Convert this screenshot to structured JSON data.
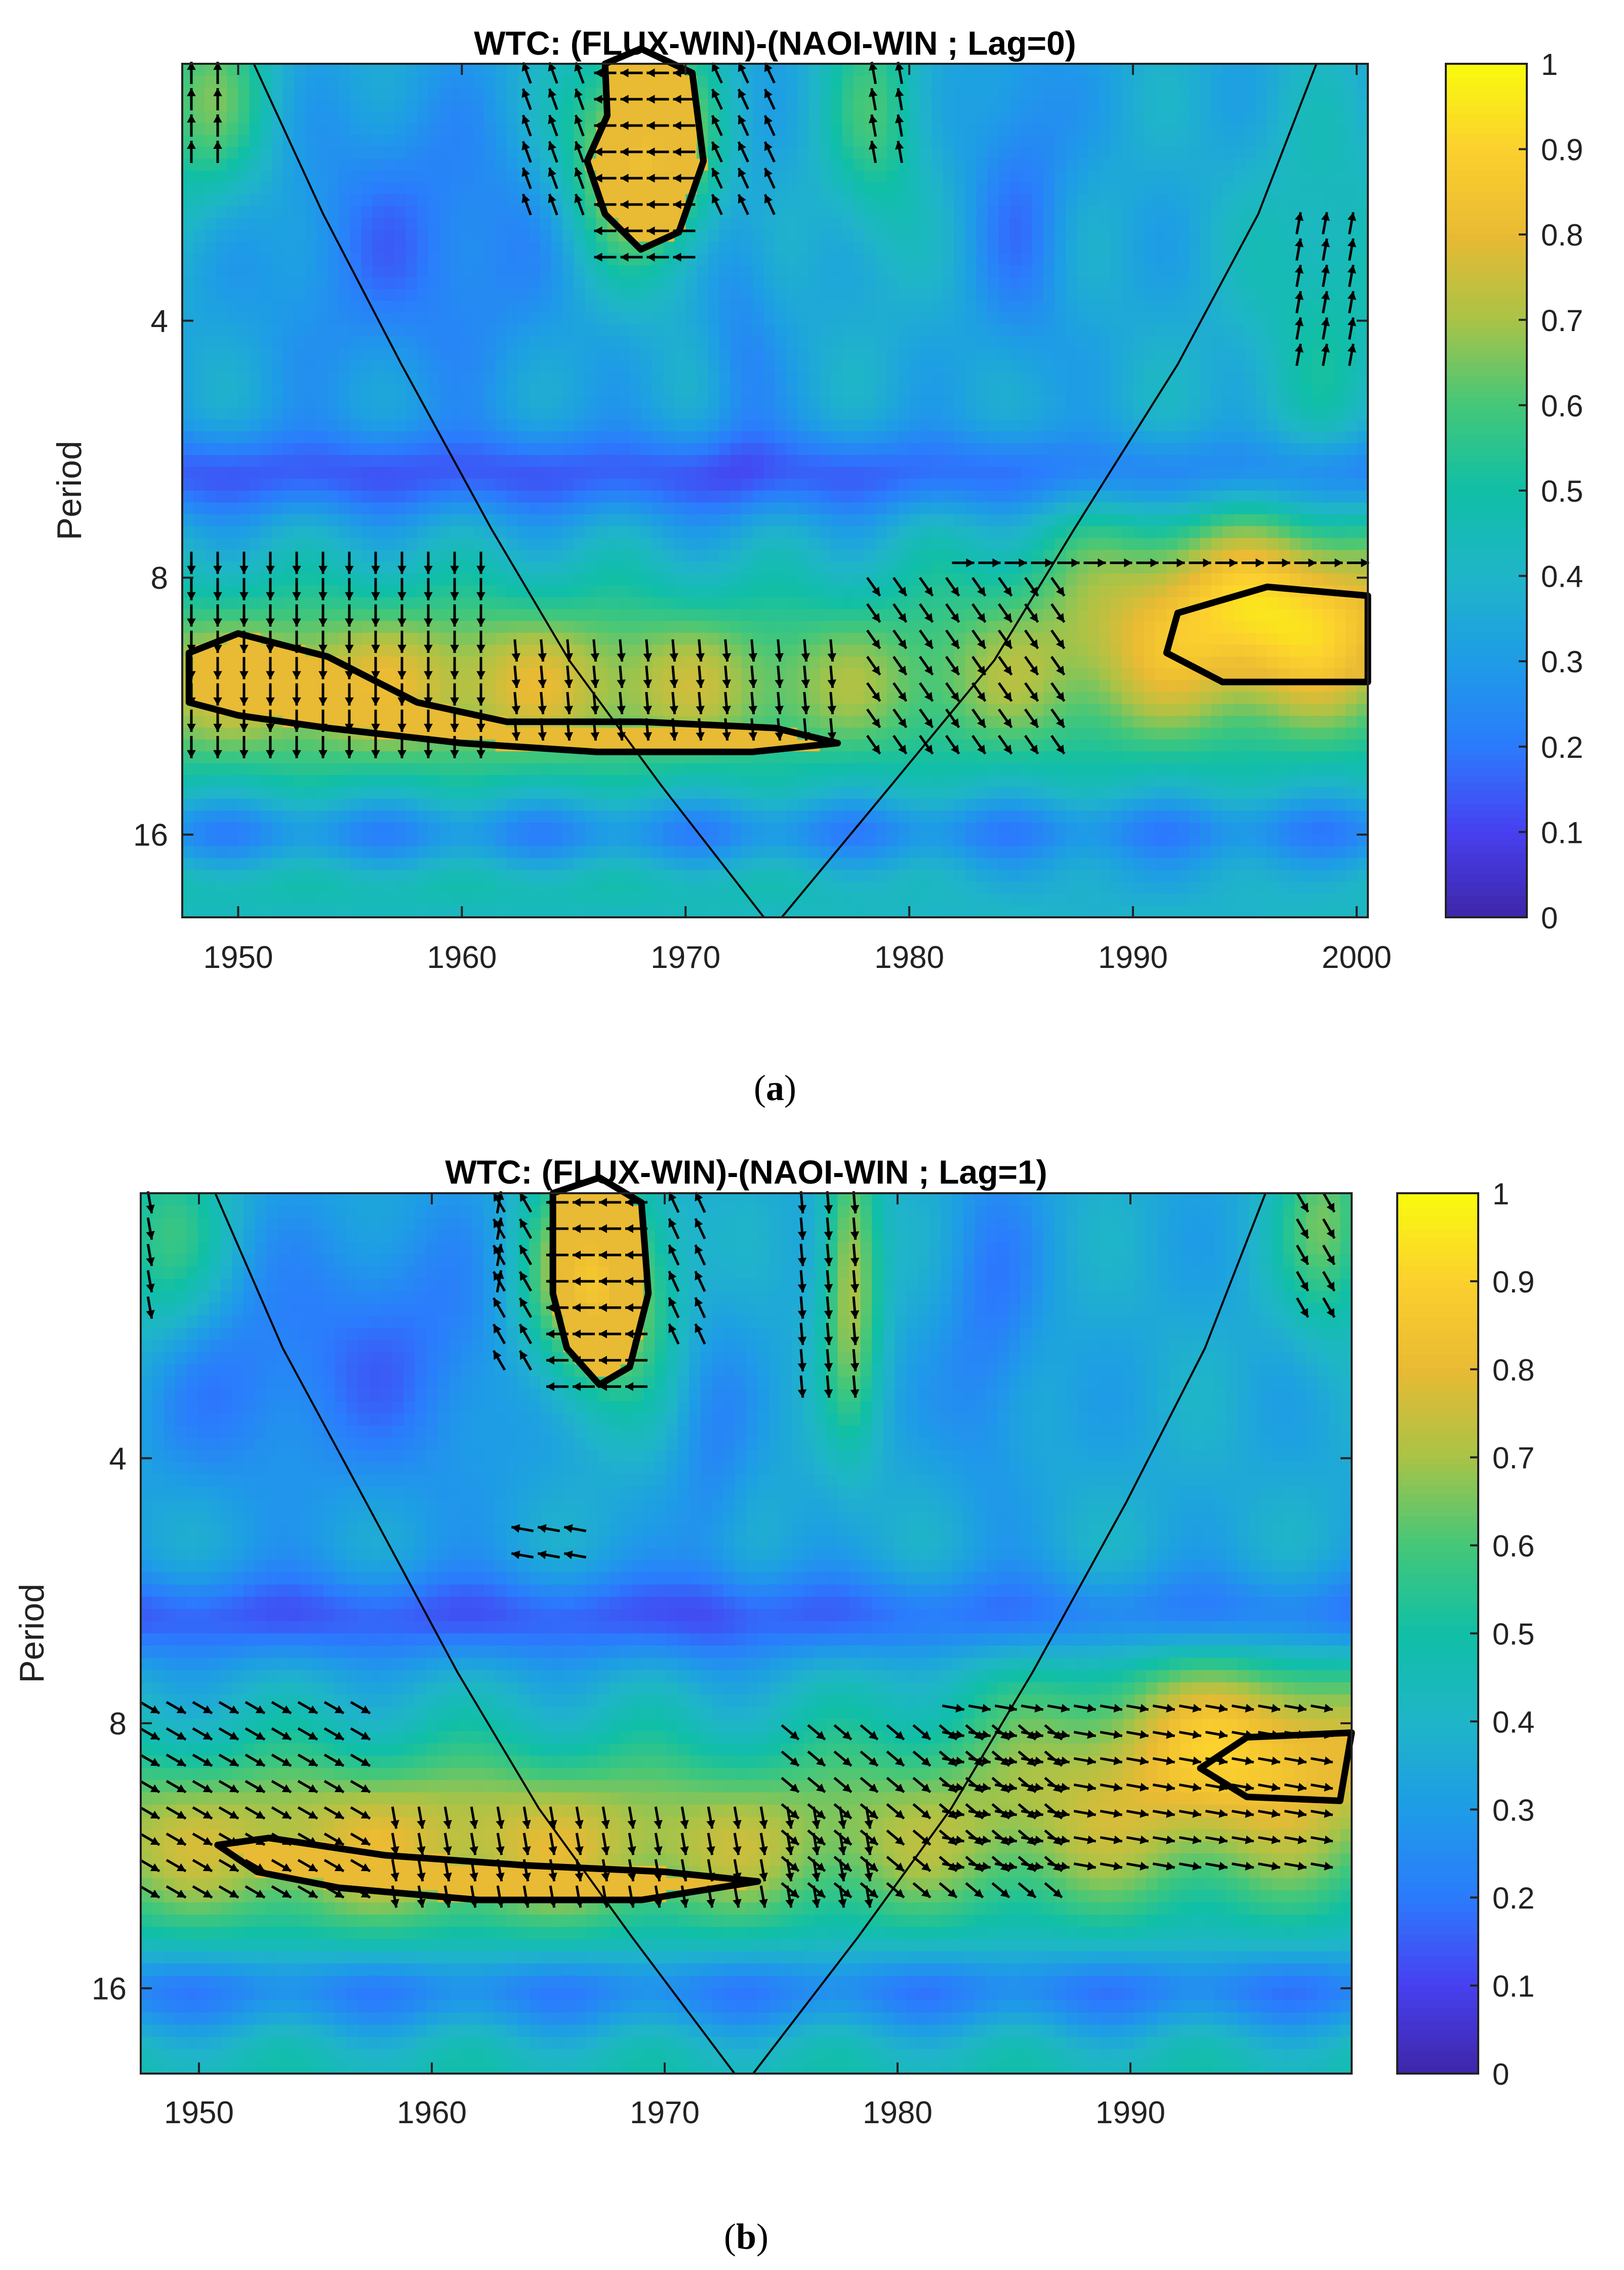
{
  "chart_data": [
    {
      "type": "heatmap",
      "title": "WTC: (FLUX-WIN)-(NAOI-WIN ; Lag=0)",
      "caption_letter": "a",
      "caption_open": "(",
      "caption_close": ")",
      "ylabel": "Period",
      "xlim": [
        1947.5,
        2000.5
      ],
      "ylim": [
        2,
        20
      ],
      "y_scale": "log2",
      "y_inverted": true,
      "x_ticks": [
        1950,
        1960,
        1970,
        1980,
        1990,
        2000
      ],
      "y_ticks": [
        4,
        8,
        16
      ],
      "colorbar": {
        "min": 0,
        "max": 1,
        "ticks": [
          0,
          0.1,
          0.2,
          0.3,
          0.4,
          0.5,
          0.6,
          0.7,
          0.8,
          0.9,
          1
        ],
        "stops": [
          "#3e26a8",
          "#4740f0",
          "#2b7bfd",
          "#1e9ce6",
          "#1fb5c8",
          "#10bfa6",
          "#44c779",
          "#a9c347",
          "#e9ba33",
          "#fcd02e",
          "#f9fb0e"
        ]
      },
      "cone_of_influence": {
        "left": [
          [
            1950.7,
            2
          ],
          [
            1953.8,
            3
          ],
          [
            1957.3,
            4.5
          ],
          [
            1961.3,
            7
          ],
          [
            1964.8,
            10
          ],
          [
            1968.9,
            14
          ],
          [
            1973.5,
            20
          ]
        ],
        "right": [
          [
            1974.3,
            20
          ],
          [
            1979.2,
            14
          ],
          [
            1983.8,
            10
          ],
          [
            1987.4,
            7
          ],
          [
            1992.0,
            4.5
          ],
          [
            1995.6,
            3
          ],
          [
            1998.2,
            2
          ]
        ]
      },
      "significance_contours": [
        [
          [
            1966.5,
            2.3
          ],
          [
            1966.4,
            2.0
          ],
          [
            1968.0,
            1.92
          ],
          [
            1970.3,
            2.05
          ],
          [
            1970.8,
            2.6
          ],
          [
            1969.7,
            3.15
          ],
          [
            1968.0,
            3.3
          ],
          [
            1966.4,
            3.0
          ],
          [
            1965.6,
            2.6
          ]
        ],
        [
          [
            1947.8,
            9.8
          ],
          [
            1950.0,
            9.3
          ],
          [
            1954.0,
            9.9
          ],
          [
            1958.0,
            11.2
          ],
          [
            1962.0,
            11.8
          ],
          [
            1968.0,
            11.8
          ],
          [
            1974.0,
            12.0
          ],
          [
            1976.8,
            12.5
          ],
          [
            1973.0,
            12.8
          ],
          [
            1966.0,
            12.8
          ],
          [
            1960.0,
            12.5
          ],
          [
            1954.0,
            12.0
          ],
          [
            1950.0,
            11.6
          ],
          [
            1947.8,
            11.2
          ]
        ],
        [
          [
            2000.5,
            8.4
          ],
          [
            1996.0,
            8.2
          ],
          [
            1992.0,
            8.8
          ],
          [
            1991.5,
            9.8
          ],
          [
            1994.0,
            10.6
          ],
          [
            2000.5,
            10.6
          ]
        ]
      ],
      "phase_arrow_groups": [
        {
          "x": [
            1947.5,
            1950
          ],
          "y": [
            2.0,
            2.6
          ],
          "angle": 90
        },
        {
          "x": [
            1966,
            1971
          ],
          "y": [
            2.0,
            3.5
          ],
          "angle": 180
        },
        {
          "x": [
            1962.5,
            1966
          ],
          "y": [
            2.0,
            3.0
          ],
          "angle": 110
        },
        {
          "x": [
            1971,
            1975
          ],
          "y": [
            2.0,
            3.0
          ],
          "angle": 115
        },
        {
          "x": [
            1978,
            1980
          ],
          "y": [
            2.0,
            2.6
          ],
          "angle": 100
        },
        {
          "x": [
            1997,
            2000.5
          ],
          "y": [
            3.0,
            4.8
          ],
          "angle": 80
        },
        {
          "x": [
            1947.5,
            1962
          ],
          "y": [
            7.5,
            13.0
          ],
          "angle": -90
        },
        {
          "x": [
            1962,
            1978
          ],
          "y": [
            9.5,
            13.0
          ],
          "angle": -85
        },
        {
          "x": [
            1978,
            1988
          ],
          "y": [
            8.0,
            13.0
          ],
          "angle": -55
        },
        {
          "x": [
            1982,
            2000.5
          ],
          "y": [
            7.5,
            8.2
          ],
          "angle": 0
        }
      ]
    },
    {
      "type": "heatmap",
      "title": "WTC: (FLUX-WIN)-(NAOI-WIN ; Lag=1)",
      "caption_letter": "b",
      "caption_open": "(",
      "caption_close": ")",
      "ylabel": "Period",
      "xlim": [
        1947.5,
        1999.5
      ],
      "ylim": [
        2,
        20
      ],
      "y_scale": "log2",
      "y_inverted": true,
      "x_ticks": [
        1950,
        1960,
        1970,
        1980,
        1990
      ],
      "y_ticks": [
        4,
        8,
        16
      ],
      "colorbar": {
        "min": 0,
        "max": 1,
        "ticks": [
          0,
          0.1,
          0.2,
          0.3,
          0.4,
          0.5,
          0.6,
          0.7,
          0.8,
          0.9,
          1
        ],
        "stops": [
          "#3e26a8",
          "#4740f0",
          "#2b7bfd",
          "#1e9ce6",
          "#1fb5c8",
          "#10bfa6",
          "#44c779",
          "#a9c347",
          "#e9ba33",
          "#fcd02e",
          "#f9fb0e"
        ]
      },
      "cone_of_influence": {
        "left": [
          [
            1950.7,
            2
          ],
          [
            1953.6,
            3
          ],
          [
            1957.2,
            4.5
          ],
          [
            1961.1,
            7
          ],
          [
            1964.6,
            10
          ],
          [
            1968.6,
            14
          ],
          [
            1973.0,
            20
          ]
        ],
        "right": [
          [
            1973.8,
            20
          ],
          [
            1978.3,
            14
          ],
          [
            1982.3,
            10
          ],
          [
            1985.8,
            7
          ],
          [
            1989.8,
            4.5
          ],
          [
            1993.2,
            3
          ],
          [
            1995.8,
            2
          ]
        ]
      },
      "significance_contours": [
        [
          [
            1965.2,
            2.3
          ],
          [
            1965.2,
            2.0
          ],
          [
            1967.2,
            1.92
          ],
          [
            1969.0,
            2.05
          ],
          [
            1969.3,
            2.6
          ],
          [
            1968.5,
            3.15
          ],
          [
            1967.2,
            3.3
          ],
          [
            1965.8,
            3.0
          ],
          [
            1965.2,
            2.6
          ]
        ],
        [
          [
            1950.8,
            11.0
          ],
          [
            1953.0,
            10.8
          ],
          [
            1958.0,
            11.3
          ],
          [
            1964.0,
            11.6
          ],
          [
            1970.0,
            11.8
          ],
          [
            1974.0,
            12.1
          ],
          [
            1969.0,
            12.7
          ],
          [
            1962.0,
            12.7
          ],
          [
            1956.0,
            12.3
          ],
          [
            1952.5,
            11.8
          ]
        ],
        [
          [
            1999.5,
            8.2
          ],
          [
            1995.0,
            8.3
          ],
          [
            1993.0,
            9.0
          ],
          [
            1995.0,
            9.7
          ],
          [
            1999.0,
            9.8
          ]
        ]
      ],
      "phase_arrow_groups": [
        {
          "x": [
            1947.5,
            1949
          ],
          "y": [
            2.0,
            2.8
          ],
          "angle": -80
        },
        {
          "x": [
            1962.5,
            1964
          ],
          "y": [
            2.0,
            2.6
          ],
          "angle": 80
        },
        {
          "x": [
            1965,
            1970
          ],
          "y": [
            2.0,
            3.5
          ],
          "angle": 180
        },
        {
          "x": [
            1962.5,
            1965
          ],
          "y": [
            2.0,
            3.2
          ],
          "angle": 120
        },
        {
          "x": [
            1970,
            1972
          ],
          "y": [
            2.0,
            3.0
          ],
          "angle": 115
        },
        {
          "x": [
            1975.5,
            1979
          ],
          "y": [
            2.0,
            3.4
          ],
          "angle": -85
        },
        {
          "x": [
            1997,
            1999.5
          ],
          "y": [
            2.0,
            2.8
          ],
          "angle": -60
        },
        {
          "x": [
            1963.5,
            1967
          ],
          "y": [
            4.7,
            5.3
          ],
          "angle": 170
        },
        {
          "x": [
            1947.5,
            1958
          ],
          "y": [
            7.5,
            13.5
          ],
          "angle": -30
        },
        {
          "x": [
            1958,
            1980
          ],
          "y": [
            10.0,
            13.5
          ],
          "angle": -80
        },
        {
          "x": [
            1975,
            1988
          ],
          "y": [
            8.0,
            13.0
          ],
          "angle": -40
        },
        {
          "x": [
            1982,
            1999.5
          ],
          "y": [
            7.5,
            12.5
          ],
          "angle": -10
        }
      ]
    }
  ]
}
